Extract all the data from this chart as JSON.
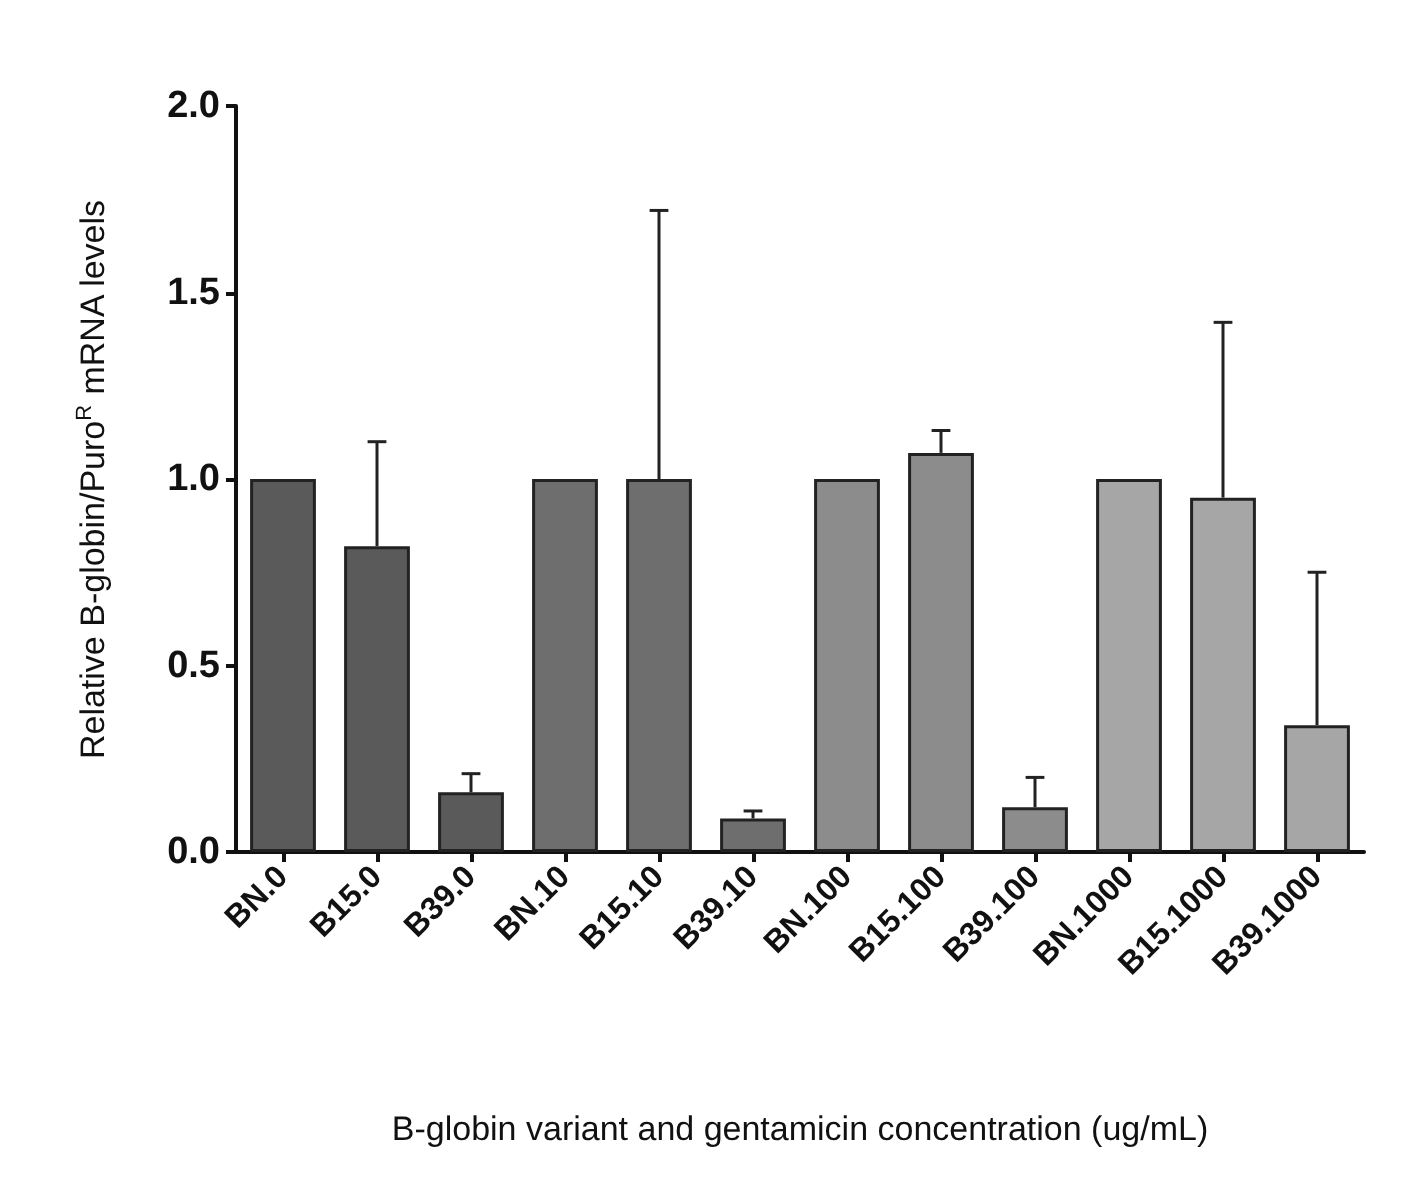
{
  "chart_data": {
    "type": "bar",
    "xlabel": "B-globin variant and gentamicin concentration (ug/mL)",
    "ylabel": "Relative B-globin/Puro$^{R}$ mRNA levels",
    "categories": [
      "BN.0",
      "B15.0",
      "B39.0",
      "BN.10",
      "B15.10",
      "B39.10",
      "BN.100",
      "B15.100",
      "B39.100",
      "BN.1000",
      "B15.1000",
      "B39.1000"
    ],
    "values": [
      1.0,
      0.82,
      0.16,
      1.0,
      1.0,
      0.09,
      1.0,
      1.07,
      0.12,
      1.0,
      0.95,
      0.34
    ],
    "colors": [
      "#5a5a5a",
      "#5a5a5a",
      "#5a5a5a",
      "#6e6e6e",
      "#6e6e6e",
      "#6e6e6e",
      "#8c8c8c",
      "#8c8c8c",
      "#8c8c8c",
      "#a6a6a6",
      "#a6a6a6",
      "#a6a6a6"
    ],
    "errors": [
      null,
      [
        0.82,
        1.1
      ],
      [
        0.16,
        0.21
      ],
      null,
      [
        1.0,
        1.72
      ],
      [
        0.09,
        0.11
      ],
      null,
      [
        1.07,
        1.13
      ],
      [
        0.12,
        0.2
      ],
      null,
      [
        0.95,
        1.42
      ],
      [
        0.34,
        0.75
      ]
    ],
    "ylim": [
      0,
      2.0
    ],
    "yticks": [
      {
        "value": 0,
        "label": "0.0"
      },
      {
        "value": 0.5,
        "label": "0.5"
      },
      {
        "value": 1,
        "label": "1.0"
      },
      {
        "value": 1.5,
        "label": "1.5"
      },
      {
        "value": 2,
        "label": "2.0"
      }
    ],
    "grid": false
  }
}
